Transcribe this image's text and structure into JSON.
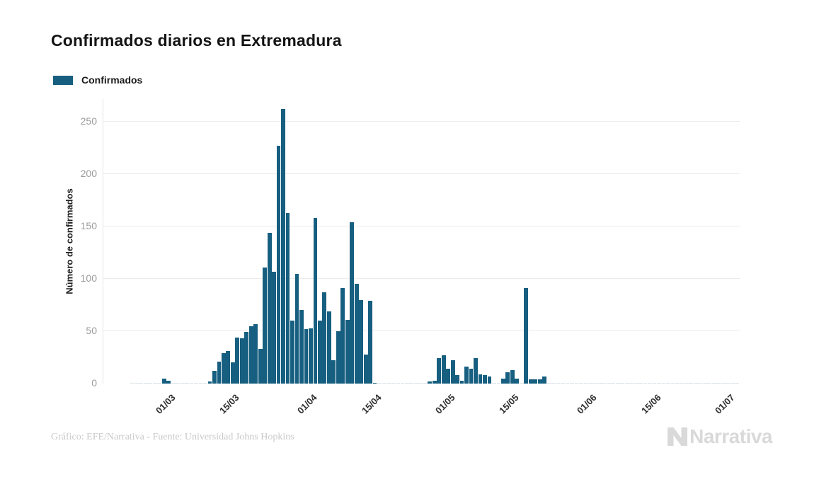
{
  "title": "Confirmados diarios en Extremadura",
  "legend": {
    "label": "Confirmados",
    "color": "#175F80"
  },
  "y_axis": {
    "title": "Número de confirmados",
    "ticks": [
      0,
      50,
      100,
      150,
      200,
      250
    ]
  },
  "x_axis": {
    "ticks": [
      "01/03",
      "15/03",
      "01/04",
      "15/04",
      "01/05",
      "15/05",
      "01/06",
      "15/06",
      "01/07"
    ]
  },
  "footer": {
    "credit": "Gráfico: EFE/Narrativa - Fuente: Universidad Johns Hopkins"
  },
  "logo": {
    "text": "Narrativa"
  },
  "chart_data": {
    "type": "bar",
    "title": "Confirmados diarios en Extremadura",
    "series_name": "Confirmados",
    "xlabel": "",
    "ylabel": "Número de confirmados",
    "ylim": [
      0,
      270
    ],
    "grid": true,
    "legend_position": "top-left",
    "bar_color": "#175F80",
    "dates": [
      "23/02",
      "24/02",
      "25/02",
      "26/02",
      "27/02",
      "28/02",
      "29/02",
      "01/03",
      "02/03",
      "03/03",
      "04/03",
      "05/03",
      "06/03",
      "07/03",
      "08/03",
      "09/03",
      "10/03",
      "11/03",
      "12/03",
      "13/03",
      "14/03",
      "15/03",
      "16/03",
      "17/03",
      "18/03",
      "19/03",
      "20/03",
      "21/03",
      "22/03",
      "23/03",
      "24/03",
      "25/03",
      "26/03",
      "27/03",
      "28/03",
      "29/03",
      "30/03",
      "31/03",
      "01/04",
      "02/04",
      "03/04",
      "04/04",
      "05/04",
      "06/04",
      "07/04",
      "08/04",
      "09/04",
      "10/04",
      "11/04",
      "12/04",
      "13/04",
      "14/04",
      "15/04",
      "16/04",
      "17/04",
      "18/04",
      "19/04",
      "20/04",
      "21/04",
      "22/04",
      "23/04",
      "24/04",
      "25/04",
      "26/04",
      "27/04",
      "28/04",
      "29/04",
      "30/04",
      "01/05",
      "02/05",
      "03/05",
      "04/05",
      "05/05",
      "06/05",
      "07/05",
      "08/05",
      "09/05",
      "10/05",
      "11/05",
      "12/05",
      "13/05",
      "14/05",
      "15/05",
      "16/05",
      "17/05",
      "18/05",
      "19/05",
      "20/05",
      "21/05",
      "22/05",
      "23/05",
      "24/05",
      "25/05",
      "26/05",
      "27/05",
      "28/05",
      "29/05",
      "30/05",
      "31/05",
      "01/06",
      "02/06",
      "03/06",
      "04/06",
      "05/06",
      "06/06",
      "07/06",
      "08/06",
      "09/06",
      "10/06",
      "11/06",
      "12/06",
      "13/06",
      "14/06",
      "15/06",
      "16/06",
      "17/06",
      "18/06",
      "19/06",
      "20/06",
      "21/06",
      "22/06",
      "23/06",
      "24/06",
      "25/06",
      "26/06",
      "27/06",
      "28/06",
      "29/06",
      "30/06",
      "01/07",
      "02/07",
      "03/07",
      "04/07"
    ],
    "values": [
      0,
      0,
      0,
      0,
      0,
      0,
      0,
      5,
      3,
      0,
      0,
      0,
      0,
      0,
      0,
      0,
      0,
      2,
      12,
      21,
      29,
      31,
      20,
      44,
      43,
      49,
      55,
      57,
      33,
      111,
      144,
      107,
      227,
      262,
      163,
      60,
      105,
      70,
      52,
      53,
      158,
      60,
      87,
      69,
      22,
      50,
      91,
      61,
      154,
      95,
      80,
      28,
      79,
      1,
      0,
      0,
      0,
      0,
      0,
      0,
      0,
      0,
      0,
      0,
      0,
      2,
      3,
      24,
      27,
      14,
      22,
      8,
      3,
      16,
      14,
      24,
      9,
      8,
      7,
      0,
      0,
      5,
      11,
      13,
      5,
      0,
      91,
      4,
      4,
      4,
      7,
      0,
      0,
      0,
      0,
      0,
      0,
      0,
      0,
      0,
      0,
      0,
      0,
      0,
      0,
      0,
      0,
      0,
      0,
      0,
      0,
      0,
      0,
      0,
      0,
      0,
      0,
      0,
      0,
      0,
      0,
      0,
      0,
      0,
      0,
      0,
      0,
      0,
      0,
      0,
      0,
      0,
      0
    ]
  }
}
